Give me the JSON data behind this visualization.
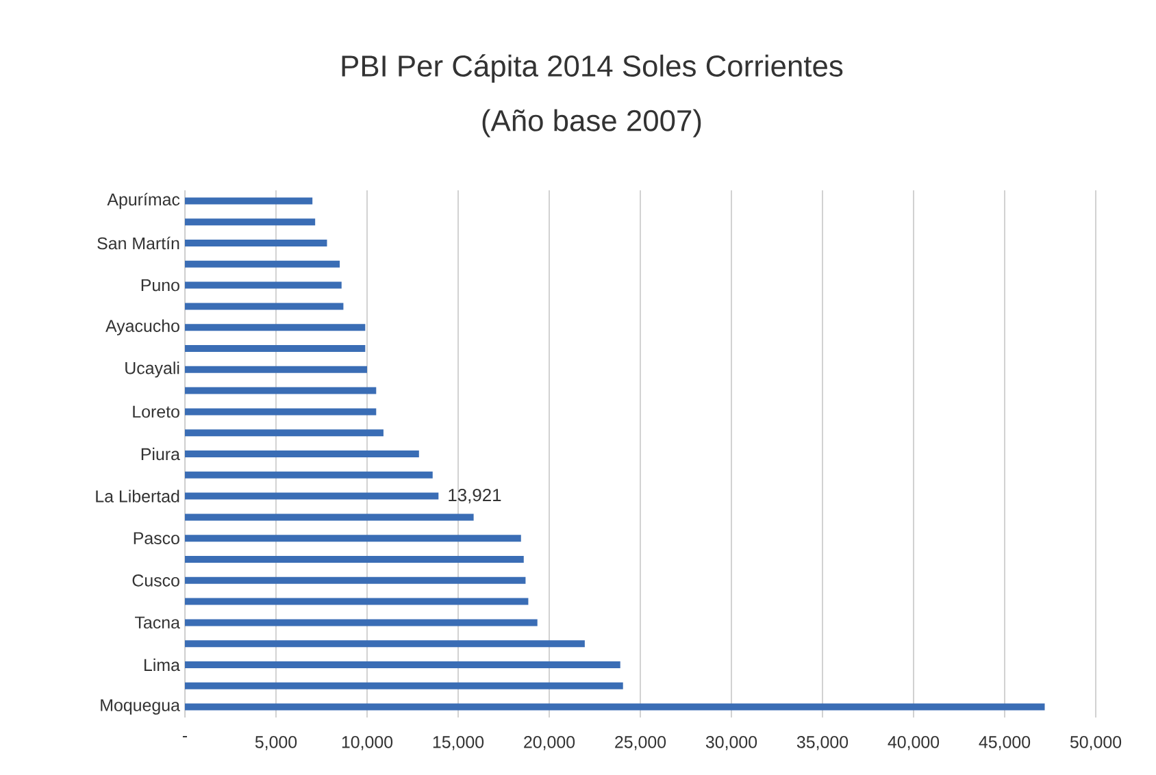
{
  "chart_data": {
    "type": "bar",
    "orientation": "horizontal",
    "title": "PBI Per Cápita 2014 Soles Corrientes",
    "subtitle": "(Año base 2007)",
    "categories": [
      "Apurímac",
      null,
      "San Martín",
      null,
      "Puno",
      null,
      "Ayacucho",
      null,
      "Ucayali",
      null,
      "Loreto",
      null,
      "Piura",
      null,
      "La Libertad",
      null,
      "Pasco",
      null,
      "Cusco",
      null,
      "Tacna",
      null,
      "Lima",
      null,
      "Moquegua"
    ],
    "values": [
      7000,
      7150,
      7800,
      8500,
      8600,
      8700,
      9900,
      9900,
      10000,
      10500,
      10500,
      10900,
      12850,
      13600,
      13921,
      15850,
      18450,
      18600,
      18700,
      18850,
      19350,
      21950,
      23900,
      24050,
      47200
    ],
    "value_labels": [
      null,
      null,
      null,
      null,
      null,
      null,
      null,
      null,
      null,
      null,
      null,
      null,
      null,
      null,
      "13,921",
      null,
      null,
      null,
      null,
      null,
      null,
      null,
      null,
      null,
      null
    ],
    "color": "#3a6db5",
    "xlim": [
      0,
      50000
    ],
    "xticks": [
      {
        "value": 0,
        "label": "-"
      },
      {
        "value": 5000,
        "label": "5,000"
      },
      {
        "value": 10000,
        "label": "10,000"
      },
      {
        "value": 15000,
        "label": "15,000"
      },
      {
        "value": 20000,
        "label": "20,000"
      },
      {
        "value": 25000,
        "label": "25,000"
      },
      {
        "value": 30000,
        "label": "30,000"
      },
      {
        "value": 35000,
        "label": "35,000"
      },
      {
        "value": 40000,
        "label": "40,000"
      },
      {
        "value": 45000,
        "label": "45,000"
      },
      {
        "value": 50000,
        "label": "50,000"
      }
    ],
    "grid": "x"
  }
}
